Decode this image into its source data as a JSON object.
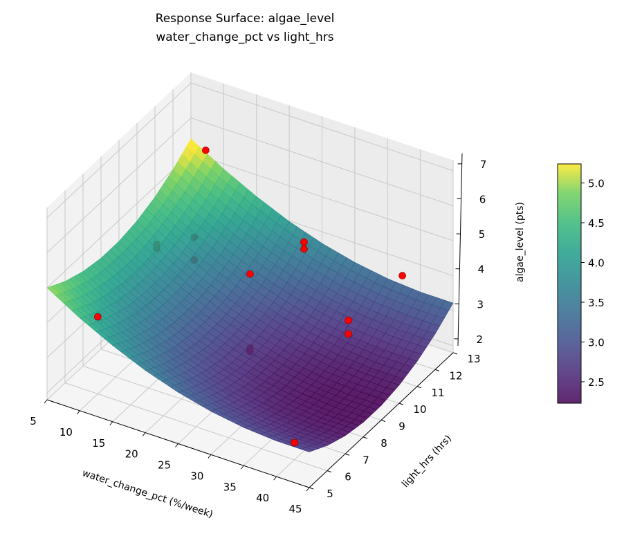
{
  "chart_data": {
    "type": "surface3d",
    "title": "Response Surface: algae_level",
    "subtitle": "water_change_pct vs light_hrs",
    "xlabel": "water_change_pct (%/week)",
    "ylabel": "light_hrs (hrs)",
    "zlabel": "algae_level (pts)",
    "xlim": [
      5,
      45
    ],
    "ylim": [
      5,
      13
    ],
    "zlim": [
      1.8,
      7.3
    ],
    "x_ticks": [
      "5",
      "10",
      "15",
      "20",
      "25",
      "30",
      "35",
      "40",
      "45"
    ],
    "y_ticks": [
      "5",
      "6",
      "7",
      "8",
      "9",
      "10",
      "11",
      "12",
      "13"
    ],
    "z_ticks": [
      "2",
      "3",
      "4",
      "5",
      "6",
      "7"
    ],
    "colormap": "viridis",
    "colorbar": {
      "range": [
        2.23,
        5.24
      ],
      "ticks": [
        "2.5",
        "3.0",
        "3.5",
        "4.0",
        "4.5",
        "5.0"
      ]
    },
    "surface": {
      "x": [
        5,
        10,
        15,
        20,
        25,
        30,
        35,
        40,
        45
      ],
      "y": [
        5,
        6,
        7,
        8,
        9,
        10,
        11,
        12,
        13
      ],
      "z": [
        [
          5.0,
          4.45,
          3.98,
          3.58,
          3.27,
          3.04,
          2.89,
          2.82,
          2.82
        ],
        [
          4.7,
          4.15,
          3.68,
          3.28,
          2.97,
          2.74,
          2.59,
          2.52,
          2.52
        ],
        [
          4.5,
          3.95,
          3.48,
          3.08,
          2.77,
          2.54,
          2.39,
          2.32,
          2.32
        ],
        [
          4.4,
          3.85,
          3.38,
          2.98,
          2.67,
          2.44,
          2.29,
          2.22,
          2.22
        ],
        [
          4.4,
          3.85,
          3.38,
          2.98,
          2.67,
          2.44,
          2.29,
          2.22,
          2.22
        ],
        [
          4.5,
          3.95,
          3.48,
          3.08,
          2.77,
          2.54,
          2.39,
          2.32,
          2.32
        ],
        [
          4.7,
          4.15,
          3.68,
          3.28,
          2.97,
          2.74,
          2.59,
          2.52,
          2.52
        ],
        [
          5.0,
          4.45,
          3.98,
          3.58,
          3.27,
          3.04,
          2.89,
          2.82,
          2.82
        ],
        [
          5.4,
          4.85,
          4.38,
          3.98,
          3.67,
          3.44,
          3.29,
          3.22,
          3.22
        ]
      ]
    },
    "points": [
      {
        "x": 10,
        "y": 12,
        "z": 5.87
      },
      {
        "x": 8,
        "y": 10,
        "z": 4.01
      },
      {
        "x": 8,
        "y": 10,
        "z": 3.91
      },
      {
        "x": 11,
        "y": 11,
        "z": 3.93
      },
      {
        "x": 11,
        "y": 11,
        "z": 3.28
      },
      {
        "x": 25,
        "y": 12,
        "z": 4.19
      },
      {
        "x": 25,
        "y": 12,
        "z": 3.99
      },
      {
        "x": 25,
        "y": 9,
        "z": 4.72
      },
      {
        "x": 40,
        "y": 12,
        "z": 4.17
      },
      {
        "x": 10,
        "y": 6,
        "z": 4.0
      },
      {
        "x": 40,
        "y": 9,
        "z": 4.34
      },
      {
        "x": 40,
        "y": 9,
        "z": 3.95
      },
      {
        "x": 25,
        "y": 9,
        "z": 2.61
      },
      {
        "x": 25,
        "y": 9,
        "z": 2.51
      },
      {
        "x": 40,
        "y": 6,
        "z": 2.29
      }
    ],
    "point_color": "#ff0000",
    "grid": true
  }
}
